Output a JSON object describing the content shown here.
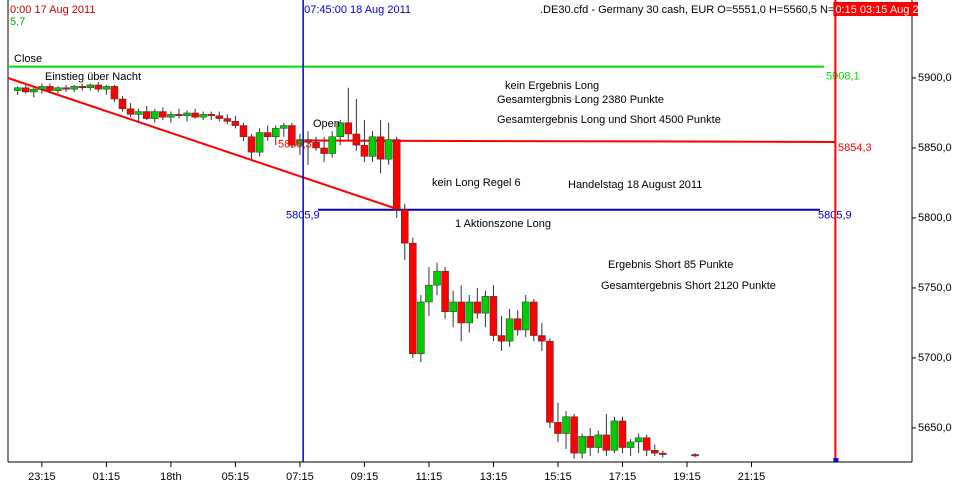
{
  "chart_data": {
    "type": "candlestick",
    "title": ".DE30.cfd - Germany 30 cash, EUR O=5551,0 H=5560,5 N=55",
    "x": [
      0,
      1,
      2,
      3,
      4,
      5,
      6,
      7,
      8,
      9,
      10,
      11,
      12,
      13,
      14,
      15,
      16,
      17,
      18,
      19,
      20,
      21,
      22,
      23,
      24,
      25,
      26,
      27,
      28,
      29,
      30,
      31,
      32,
      33,
      34,
      35,
      36,
      37,
      38,
      39,
      40,
      41,
      42,
      43,
      44,
      45,
      46,
      47,
      48,
      49,
      50,
      51,
      52,
      53,
      54,
      55,
      56,
      57,
      58,
      59,
      60,
      61,
      62,
      63,
      64,
      65,
      66,
      67,
      68,
      69,
      70,
      71,
      72,
      73,
      74,
      75,
      76,
      77,
      78,
      79,
      80,
      84
    ],
    "open": [
      5891,
      5893,
      5890,
      5892,
      5894,
      5891,
      5893,
      5892,
      5894,
      5893,
      5895,
      5892,
      5894,
      5885,
      5878,
      5874,
      5876,
      5871,
      5876,
      5872,
      5874,
      5873,
      5875,
      5872,
      5874,
      5873,
      5871,
      5869,
      5866,
      5858,
      5847,
      5861,
      5858,
      5864,
      5866,
      5852,
      5856,
      5854,
      5850,
      5846,
      5858,
      5868,
      5860,
      5852,
      5844,
      5858,
      5842,
      5856,
      5806,
      5782,
      5703,
      5740,
      5752,
      5762,
      5733,
      5740,
      5725,
      5740,
      5732,
      5744,
      5716,
      5712,
      5728,
      5720,
      5740,
      5716,
      5712,
      5654,
      5646,
      5658,
      5632,
      5644,
      5636,
      5645,
      5634,
      5655,
      5636,
      5640,
      5643,
      5634,
      5632,
      5631
    ],
    "high": [
      5894,
      5895,
      5893,
      5896,
      5896,
      5894,
      5895,
      5895,
      5896,
      5896,
      5897,
      5895,
      5895,
      5887,
      5882,
      5878,
      5880,
      5878,
      5879,
      5876,
      5878,
      5877,
      5878,
      5876,
      5876,
      5876,
      5874,
      5873,
      5868,
      5860,
      5864,
      5866,
      5866,
      5868,
      5868,
      5860,
      5862,
      5858,
      5858,
      5862,
      5870,
      5893,
      5885,
      5870,
      5862,
      5870,
      5868,
      5858,
      5810,
      5786,
      5745,
      5765,
      5768,
      5765,
      5748,
      5752,
      5745,
      5750,
      5748,
      5752,
      5730,
      5735,
      5734,
      5745,
      5742,
      5725,
      5714,
      5668,
      5662,
      5660,
      5646,
      5650,
      5648,
      5660,
      5658,
      5658,
      5642,
      5646,
      5645,
      5638,
      5634,
      5632
    ],
    "low": [
      5888,
      5889,
      5886,
      5889,
      5889,
      5889,
      5890,
      5890,
      5891,
      5891,
      5890,
      5888,
      5883,
      5876,
      5872,
      5868,
      5870,
      5868,
      5870,
      5868,
      5871,
      5869,
      5871,
      5870,
      5870,
      5869,
      5867,
      5864,
      5855,
      5842,
      5844,
      5855,
      5852,
      5858,
      5850,
      5845,
      5838,
      5848,
      5840,
      5843,
      5852,
      5856,
      5848,
      5840,
      5840,
      5832,
      5838,
      5800,
      5770,
      5700,
      5697,
      5730,
      5745,
      5728,
      5722,
      5712,
      5718,
      5728,
      5722,
      5712,
      5705,
      5708,
      5716,
      5715,
      5712,
      5705,
      5650,
      5640,
      5635,
      5628,
      5628,
      5630,
      5632,
      5630,
      5632,
      5632,
      5630,
      5632,
      5630,
      5630,
      5629,
      5629
    ],
    "close": [
      5893,
      5890,
      5892,
      5894,
      5891,
      5893,
      5892,
      5894,
      5893,
      5895,
      5892,
      5894,
      5885,
      5878,
      5874,
      5876,
      5871,
      5876,
      5872,
      5874,
      5873,
      5875,
      5872,
      5874,
      5873,
      5871,
      5869,
      5866,
      5858,
      5847,
      5861,
      5858,
      5864,
      5866,
      5852,
      5856,
      5854,
      5850,
      5846,
      5858,
      5868,
      5860,
      5852,
      5844,
      5858,
      5842,
      5856,
      5806,
      5782,
      5703,
      5740,
      5752,
      5762,
      5733,
      5740,
      5725,
      5740,
      5732,
      5744,
      5716,
      5712,
      5728,
      5720,
      5740,
      5716,
      5712,
      5654,
      5646,
      5658,
      5632,
      5644,
      5636,
      5645,
      5634,
      5655,
      5636,
      5640,
      5643,
      5634,
      5632,
      5631,
      5630
    ],
    "up_color": "#00cc00",
    "down_color": "#ff0000",
    "xlim": [
      -1.2,
      110.9
    ],
    "ylim": [
      5627.1,
      5955.7
    ],
    "xticks": [
      {
        "value": 3,
        "label": "23:15"
      },
      {
        "value": 11,
        "label": "01:15"
      },
      {
        "value": 19,
        "label": "18th"
      },
      {
        "value": 27,
        "label": "05:15"
      },
      {
        "value": 35,
        "label": "07:15"
      },
      {
        "value": 43,
        "label": "09:15"
      },
      {
        "value": 51,
        "label": "11:15"
      },
      {
        "value": 59,
        "label": "13:15"
      },
      {
        "value": 67,
        "label": "15:15"
      },
      {
        "value": 75,
        "label": "17:15"
      },
      {
        "value": 83,
        "label": "19:15"
      },
      {
        "value": 91,
        "label": "21:15"
      }
    ],
    "yticks": [
      {
        "value": 5650,
        "label": "5650,0"
      },
      {
        "value": 5700,
        "label": "5700,0"
      },
      {
        "value": 5750,
        "label": "5750,0"
      },
      {
        "value": 5800,
        "label": "5800,0"
      },
      {
        "value": 5850,
        "label": "5850,0"
      },
      {
        "value": 5900,
        "label": "5900,0"
      }
    ],
    "levels": [
      {
        "value": 5908.1,
        "label": "5908,1",
        "color": "#00dd00"
      },
      {
        "value": 5855.3,
        "label": "5855,3",
        "color": "#ff0000"
      },
      {
        "value": 5854.3,
        "label": "5854,3",
        "color": "#ff0000"
      },
      {
        "value": 5805.9,
        "label": "5805,9",
        "color": "#0000cc"
      }
    ],
    "cursors": [
      {
        "x": 35.4,
        "label": "07:45:00 18 Aug 2011",
        "color": "#0000cc"
      },
      {
        "x": 101.4,
        "label": "0:15 03:15 Aug 2",
        "color": "#ff0000"
      }
    ],
    "start_label": "0:00 17 Aug 2011",
    "start_value": "5,7",
    "annotations": [
      "Close",
      "Einstieg über Nacht",
      "kein Ergebnis Long",
      "Gesamtergbnis Long 2380 Punkte",
      "Gesamtergebnis Long und Short 4500 Punkte",
      "Open",
      "kein Long Regel 6",
      "Handelstag 18 August 2011",
      "1 Aktionszone Long",
      "Ergebnis Short 85 Punkte",
      "Gesamtergebnis Short 2120 Punkte"
    ]
  }
}
